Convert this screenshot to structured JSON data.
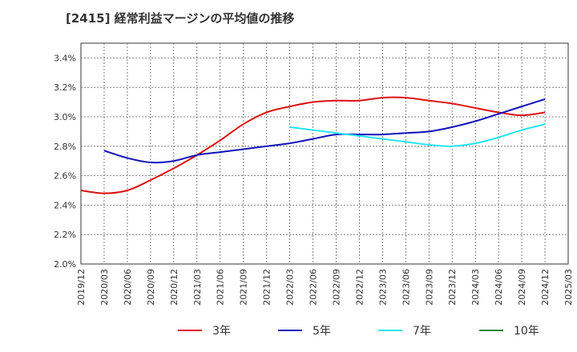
{
  "chart_data": {
    "type": "line",
    "title": "[2415]  経常利益マージンの平均値の推移",
    "xlabel": "",
    "ylabel": "",
    "ylim": [
      2.0,
      3.5
    ],
    "y_ticks": [
      2.0,
      2.2,
      2.4,
      2.6,
      2.8,
      3.0,
      3.2,
      3.4
    ],
    "y_tick_labels": [
      "2.0%",
      "2.2%",
      "2.4%",
      "2.6%",
      "2.8%",
      "3.0%",
      "3.2%",
      "3.4%"
    ],
    "x_ticks": [
      "2019/12",
      "2020/03",
      "2020/06",
      "2020/09",
      "2020/12",
      "2021/03",
      "2021/06",
      "2021/09",
      "2021/12",
      "2022/03",
      "2022/06",
      "2022/09",
      "2022/12",
      "2023/03",
      "2023/06",
      "2023/09",
      "2023/12",
      "2024/03",
      "2024/06",
      "2024/09",
      "2024/12",
      "2025/03"
    ],
    "grid": true,
    "legend_position": "bottom",
    "series": [
      {
        "name": "3年",
        "color": "#dd1111",
        "points": [
          [
            "2019/12",
            2.5
          ],
          [
            "2020/03",
            2.48
          ],
          [
            "2020/06",
            2.5
          ],
          [
            "2020/09",
            2.57
          ],
          [
            "2020/12",
            2.65
          ],
          [
            "2021/03",
            2.74
          ],
          [
            "2021/06",
            2.84
          ],
          [
            "2021/09",
            2.95
          ],
          [
            "2021/12",
            3.03
          ],
          [
            "2022/03",
            3.07
          ],
          [
            "2022/06",
            3.1
          ],
          [
            "2022/09",
            3.11
          ],
          [
            "2022/12",
            3.11
          ],
          [
            "2023/03",
            3.13
          ],
          [
            "2023/06",
            3.13
          ],
          [
            "2023/09",
            3.11
          ],
          [
            "2023/12",
            3.09
          ],
          [
            "2024/03",
            3.06
          ],
          [
            "2024/06",
            3.03
          ],
          [
            "2024/09",
            3.01
          ],
          [
            "2024/12",
            3.03
          ]
        ]
      },
      {
        "name": "5年",
        "color": "#1111bb",
        "points": [
          [
            "2020/03",
            2.77
          ],
          [
            "2020/06",
            2.72
          ],
          [
            "2020/09",
            2.69
          ],
          [
            "2020/12",
            2.7
          ],
          [
            "2021/03",
            2.74
          ],
          [
            "2021/06",
            2.76
          ],
          [
            "2021/09",
            2.78
          ],
          [
            "2021/12",
            2.8
          ],
          [
            "2022/03",
            2.82
          ],
          [
            "2022/06",
            2.85
          ],
          [
            "2022/09",
            2.88
          ],
          [
            "2022/12",
            2.88
          ],
          [
            "2023/03",
            2.88
          ],
          [
            "2023/06",
            2.89
          ],
          [
            "2023/09",
            2.9
          ],
          [
            "2023/12",
            2.93
          ],
          [
            "2024/03",
            2.97
          ],
          [
            "2024/06",
            3.02
          ],
          [
            "2024/09",
            3.07
          ],
          [
            "2024/12",
            3.12
          ]
        ]
      },
      {
        "name": "7年",
        "color": "#22e5ee",
        "points": [
          [
            "2022/03",
            2.93
          ],
          [
            "2022/06",
            2.91
          ],
          [
            "2022/09",
            2.89
          ],
          [
            "2022/12",
            2.87
          ],
          [
            "2023/03",
            2.85
          ],
          [
            "2023/06",
            2.83
          ],
          [
            "2023/09",
            2.81
          ],
          [
            "2023/12",
            2.8
          ],
          [
            "2024/03",
            2.82
          ],
          [
            "2024/06",
            2.86
          ],
          [
            "2024/09",
            2.91
          ],
          [
            "2024/12",
            2.95
          ]
        ]
      },
      {
        "name": "10年",
        "color": "#228822",
        "points": []
      }
    ]
  }
}
